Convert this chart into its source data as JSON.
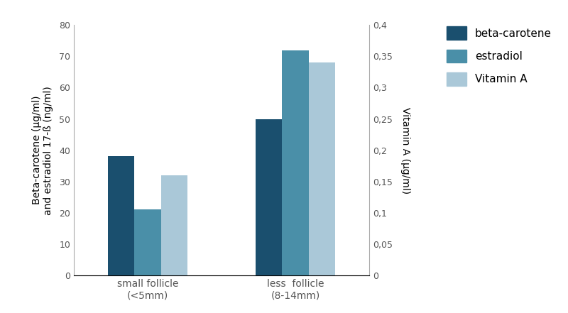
{
  "categories": [
    "small follicle\n(<5mm)",
    "less  follicle\n(8-14mm)"
  ],
  "beta_carotene": [
    38,
    50
  ],
  "estradiol": [
    21,
    72
  ],
  "vitamin_a": [
    32,
    68
  ],
  "colors": {
    "beta_carotene": "#1a4f6e",
    "estradiol": "#4a8fa8",
    "vitamin_a": "#aac8d8"
  },
  "ylabel_left": "Beta-carotene (µg/ml)\nand estradiol 17-ß (ng/ml)",
  "ylabel_right": "Vitamin A (µg/ml)",
  "ylim_left": [
    0,
    80
  ],
  "ylim_right": [
    0,
    0.4
  ],
  "yticks_left": [
    0,
    10,
    20,
    30,
    40,
    50,
    60,
    70,
    80
  ],
  "yticks_right": [
    0,
    0.05,
    0.1,
    0.15,
    0.2,
    0.25,
    0.3,
    0.35,
    0.4
  ],
  "ytick_labels_right": [
    "0",
    "0,05",
    "0,1",
    "0,15",
    "0,2",
    "0,25",
    "0,3",
    "0,35",
    "0,4"
  ],
  "ytick_labels_left": [
    "0",
    "10",
    "20",
    "30",
    "40",
    "50",
    "60",
    "70",
    "80"
  ],
  "legend_labels": [
    "beta-carotene",
    "estradiol",
    "Vitamin A"
  ],
  "bar_width": 0.18,
  "figsize": [
    8.0,
    4.41
  ],
  "dpi": 100
}
